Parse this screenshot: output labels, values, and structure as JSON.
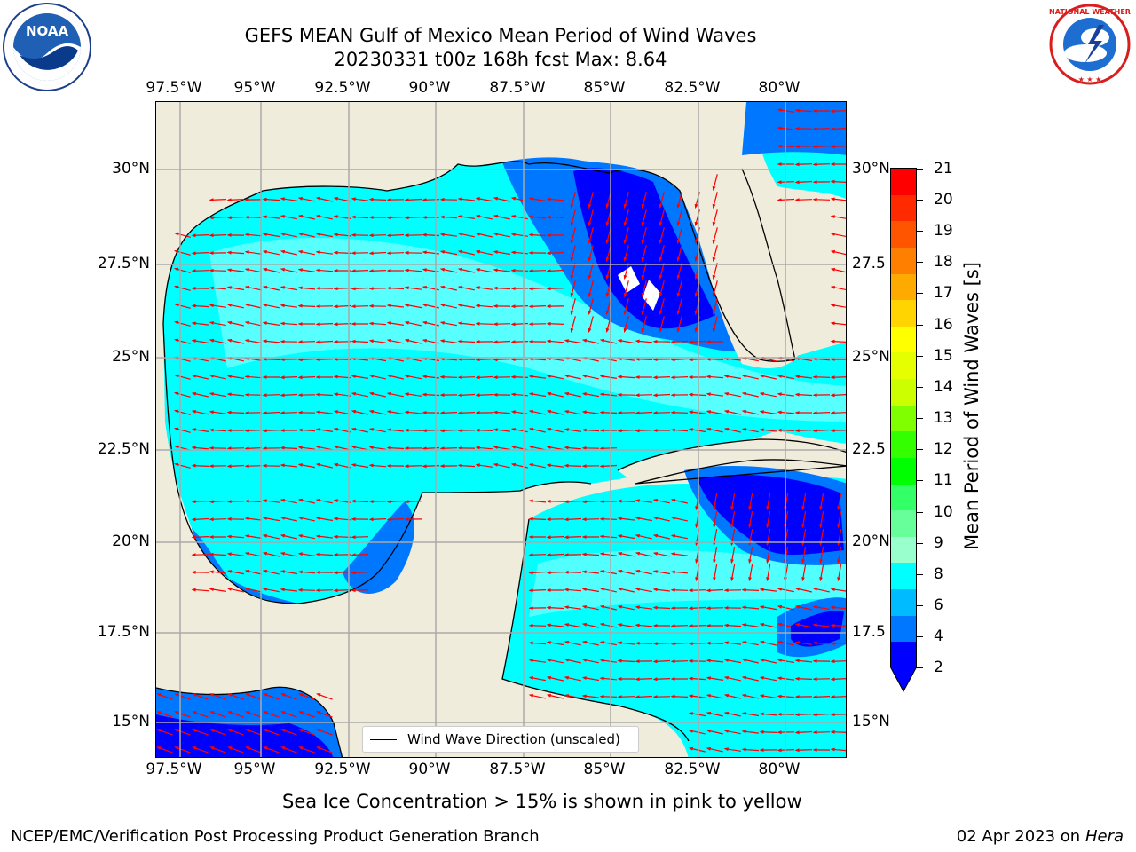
{
  "header": {
    "title_line1": "GEFS MEAN Gulf of Mexico Mean Period of Wind Waves",
    "title_line2": "20230331 t00z 168h fcst   Max: 8.64",
    "left_logo_text": "NOAA",
    "left_logo_ring": "NATIONAL OCEANIC AND ATMOSPHERIC ADMINISTRATION · U.S. DEPARTMENT OF COMMERCE",
    "right_logo_ring": "NATIONAL WEATHER SERVICE"
  },
  "map": {
    "lon_labels": [
      "97.5°W",
      "95°W",
      "92.5°W",
      "90°W",
      "87.5°W",
      "85°W",
      "82.5°W",
      "80°W"
    ],
    "lat_labels_left": [
      "30°N",
      "27.5°N",
      "25°N",
      "22.5°N",
      "20°N",
      "17.5°N",
      "15°N"
    ],
    "lat_labels_right": [
      "30°N",
      "27.5",
      "25°N",
      "22.5",
      "20°N",
      "17.5",
      "15°N"
    ],
    "legend_label": "Wind Wave Direction (unscaled)",
    "colors": {
      "land": "#efecdc",
      "period_2_4": "#0000ff",
      "period_4_6": "#0077ff",
      "period_6_8": "#00ffff",
      "period_8_9": "#66ffff",
      "arrow": "#ff0000",
      "grid": "#aaaaaa"
    }
  },
  "colorbar": {
    "title": "Mean Period of Wind Waves [s]",
    "ticks": [
      "21",
      "20",
      "19",
      "18",
      "17",
      "16",
      "15",
      "14",
      "13",
      "12",
      "11",
      "10",
      "9",
      "8",
      "6",
      "4",
      "2"
    ],
    "colors": [
      "#ff0000",
      "#ff2a00",
      "#ff5500",
      "#ff8000",
      "#ffaa00",
      "#ffd400",
      "#ffff00",
      "#e5ff00",
      "#ccff00",
      "#80ff00",
      "#33ff00",
      "#00ff00",
      "#33ff66",
      "#66ff99",
      "#99ffcc",
      "#00ffff",
      "#00bbff",
      "#0077ff",
      "#0000ff"
    ]
  },
  "notes": {
    "sea_ice": "Sea Ice Concentration > 15% is shown in pink to yellow",
    "branch": "NCEP/EMC/Verification Post Processing Product Generation Branch",
    "date_prefix": "02 Apr 2023 on ",
    "machine": "Hera"
  }
}
